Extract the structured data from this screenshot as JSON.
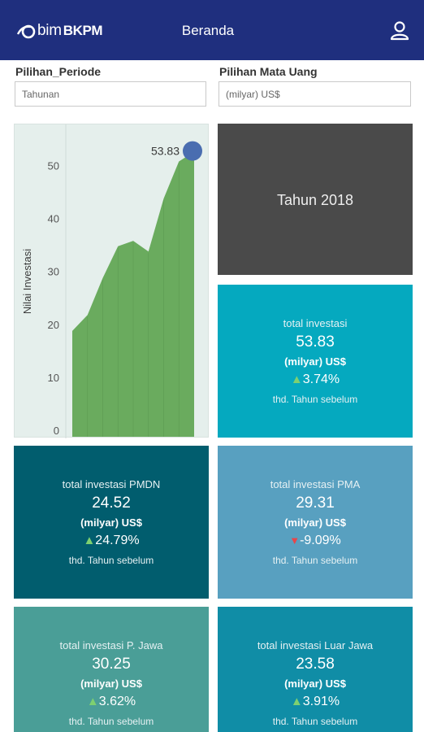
{
  "app": {
    "logo_primary": "bim",
    "logo_secondary": "BKPM",
    "title": "Beranda",
    "profile_icon": "user-icon"
  },
  "filters": {
    "period_label": "Pilihan_Periode",
    "period_value": "Tahunan",
    "currency_label": "Pilihan Mata Uang",
    "currency_value": "(milyar) US$"
  },
  "year_tile": {
    "text": "Tahun 2018",
    "color": "#4a4a4a"
  },
  "chart_data": {
    "type": "area",
    "ylabel": "Nilai Investasi",
    "xlabel": "",
    "ylim": [
      0,
      59
    ],
    "y_ticks": [
      0,
      10,
      20,
      30,
      40,
      50
    ],
    "x_ticks_visible": false,
    "grid": false,
    "color": "#6aab5e",
    "values": [
      20.0,
      23.0,
      30.0,
      36.0,
      37.0,
      35.0,
      45.0,
      52.0,
      53.83
    ],
    "highlight": {
      "value": 53.83,
      "label": "53.83",
      "color": "#4a6db0"
    }
  },
  "tiles": [
    {
      "label": "total investasi",
      "value": "53.83",
      "unit": "(milyar) US$",
      "change": "3.74%",
      "direction": "up",
      "note": "thd. Tahun sebelum",
      "color": "#05a9bf"
    },
    {
      "label": "total investasi PMDN",
      "value": "24.52",
      "unit": "(milyar) US$",
      "change": "24.79%",
      "direction": "up",
      "note": "thd. Tahun  sebelum",
      "color": "#015d6e"
    },
    {
      "label": "total investasi PMA",
      "value": "29.31",
      "unit": "(milyar) US$",
      "change": "-9.09%",
      "direction": "down",
      "note": "thd. Tahun  sebelum",
      "color": "#58a0c0"
    },
    {
      "label": "total investasi P. Jawa",
      "value": "30.25",
      "unit": "(milyar) US$",
      "change": "3.62%",
      "direction": "up",
      "note": "thd. Tahun  sebelum",
      "color": "#4a9e97"
    },
    {
      "label": "total investasi Luar Jawa",
      "value": "23.58",
      "unit": "(milyar) US$",
      "change": "3.91%",
      "direction": "up",
      "note": "thd. Tahun  sebelum",
      "color": "#108da6"
    }
  ]
}
